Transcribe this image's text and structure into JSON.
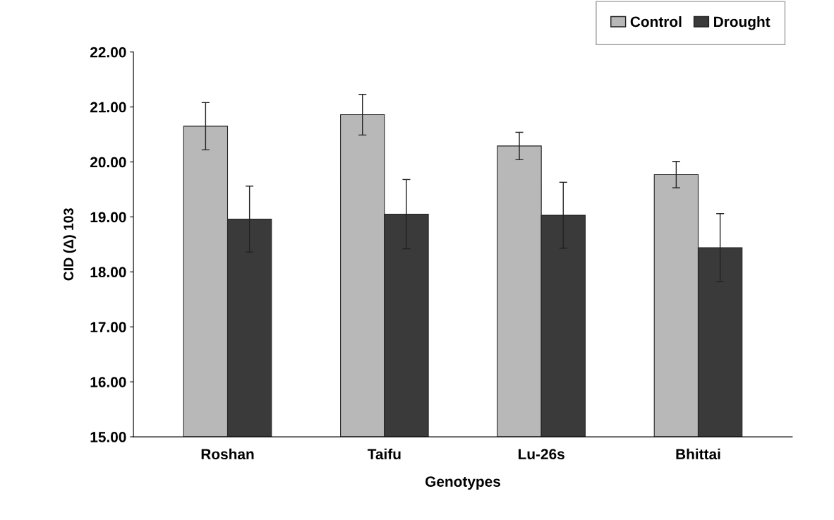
{
  "chart_data": {
    "type": "bar",
    "xlabel": "Genotypes",
    "ylabel": "CID (Δ) 103",
    "categories": [
      "Roshan",
      "Taifu",
      "Lu-26s",
      "Bhittai"
    ],
    "series": [
      {
        "name": "Control",
        "color": "#b8b8b8",
        "values": [
          20.65,
          20.86,
          20.29,
          19.77
        ],
        "errors": [
          0.43,
          0.37,
          0.25,
          0.24
        ]
      },
      {
        "name": "Drought",
        "color": "#3a3a3a",
        "values": [
          18.96,
          19.05,
          19.03,
          18.44
        ],
        "errors": [
          0.6,
          0.63,
          0.6,
          0.62
        ]
      }
    ],
    "ylim": [
      15,
      22
    ],
    "yticks": [
      {
        "value": 15,
        "label": "15.00"
      },
      {
        "value": 16,
        "label": "16.00"
      },
      {
        "value": 17,
        "label": "17.00"
      },
      {
        "value": 18,
        "label": "18.00"
      },
      {
        "value": 19,
        "label": "19.00"
      },
      {
        "value": 20,
        "label": "20.00"
      },
      {
        "value": 21,
        "label": "21.00"
      },
      {
        "value": 22,
        "label": "22.00"
      }
    ],
    "legend": "top right",
    "grid": false
  }
}
